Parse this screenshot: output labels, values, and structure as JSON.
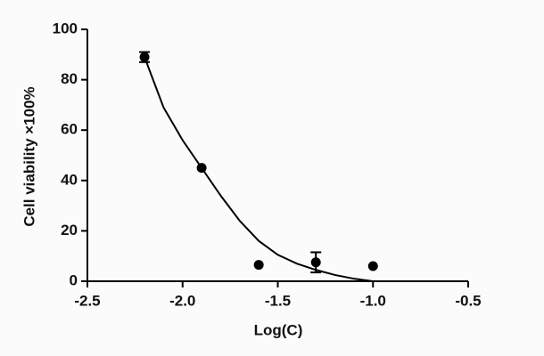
{
  "chart_data": {
    "type": "scatter",
    "xlabel": "Log(C)",
    "ylabel": "Cell viability  ×100%",
    "xlim": [
      -2.5,
      -0.5
    ],
    "xticks": [
      -2.5,
      {
        "value": -2,
        "label": "-2.0"
      },
      -1.5,
      {
        "value": -1,
        "label": "-1.0"
      },
      -0.5
    ],
    "ylim": [
      0,
      100
    ],
    "yticks": [
      0,
      20,
      40,
      60,
      80,
      100
    ],
    "series": [
      {
        "color": "#000000",
        "x": [
          -2.2,
          -1.9,
          -1.6,
          -1.3,
          -1.0
        ],
        "values": [
          89,
          45,
          6.5,
          7.5,
          6
        ],
        "errors": [
          2,
          null,
          null,
          4,
          null
        ]
      }
    ],
    "fit": {
      "color": "#000000",
      "x": [
        -2.2,
        -2.1,
        -2.0,
        -1.9,
        -1.8,
        -1.7,
        -1.6,
        -1.5,
        -1.4,
        -1.3,
        -1.2,
        -1.1,
        -1.0
      ],
      "values": [
        89,
        69,
        56,
        45,
        34,
        24,
        16,
        10.5,
        7,
        4.5,
        2.5,
        1,
        0
      ]
    }
  }
}
